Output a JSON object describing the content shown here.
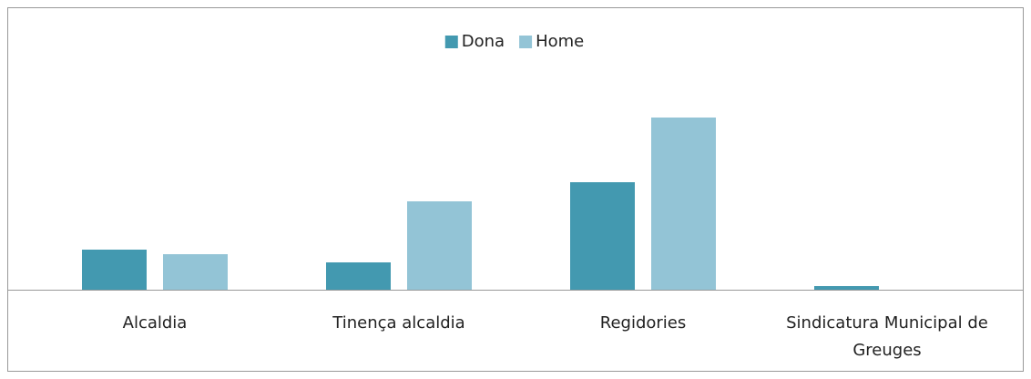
{
  "chart_data": {
    "type": "bar",
    "categories": [
      "Alcaldia",
      "Tinença alcaldia",
      "Regidories",
      "Sindicatura Municipal de Greuges"
    ],
    "series": [
      {
        "name": "Dona",
        "color": "#4399b0",
        "values": [
          44,
          30,
          118,
          4
        ]
      },
      {
        "name": "Home",
        "color": "#93c4d6",
        "values": [
          39,
          97,
          189,
          0
        ]
      }
    ],
    "ylim": [
      0,
      200
    ],
    "legend": "top"
  }
}
